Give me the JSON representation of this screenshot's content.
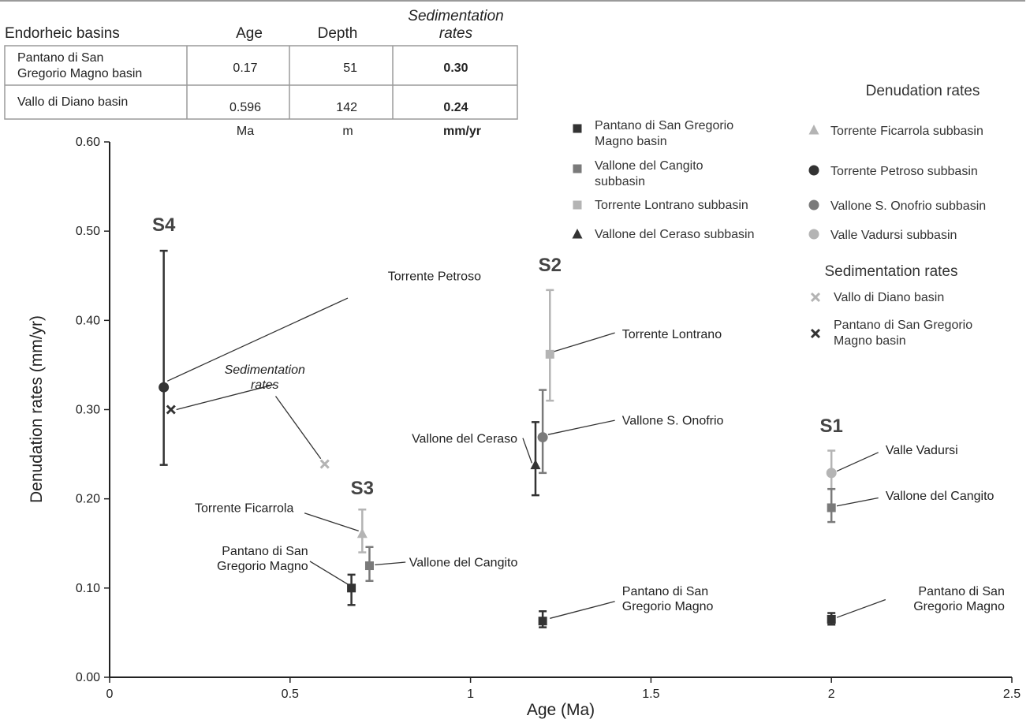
{
  "table": {
    "headers": [
      "Endorheic basins",
      "Age",
      "Depth",
      "Sedimentation",
      "rates"
    ],
    "rows": [
      {
        "name_lines": [
          "Pantano di San",
          "Gregorio Magno basin"
        ],
        "age": "0.17",
        "depth": "51",
        "rate": "0.30"
      },
      {
        "name_lines": [
          "Vallo di Diano basin"
        ],
        "age": "0.596",
        "depth": "142",
        "rate": "0.24"
      }
    ],
    "units": [
      "Ma",
      "m",
      "mm/yr"
    ]
  },
  "chart_data": {
    "type": "scatter",
    "xlabel": "Age (Ma)",
    "ylabel": "Denudation rates (mm/yr)",
    "xlim": [
      0,
      2.5
    ],
    "ylim": [
      0,
      0.6
    ],
    "x_ticks": [
      "0",
      "0.5",
      "1",
      "1.5",
      "2",
      "2.5"
    ],
    "y_ticks": [
      "0.00",
      "0.10",
      "0.20",
      "0.30",
      "0.40",
      "0.50",
      "0.60"
    ],
    "grid": false,
    "colors": {
      "dark": "#333333",
      "mid": "#7a7a7a",
      "light": "#b4b4b4"
    },
    "series": [
      {
        "x": 0.15,
        "y": 0.325,
        "err": [
          0.238,
          0.478
        ],
        "marker": "circle",
        "shade": "dark"
      },
      {
        "x": 0.17,
        "y": 0.3,
        "marker": "x",
        "shade": "dark"
      },
      {
        "x": 0.596,
        "y": 0.239,
        "marker": "x",
        "shade": "light"
      },
      {
        "x": 0.67,
        "y": 0.1,
        "err": [
          0.081,
          0.115
        ],
        "marker": "square",
        "shade": "dark"
      },
      {
        "x": 0.7,
        "y": 0.161,
        "err": [
          0.14,
          0.188
        ],
        "marker": "triangle",
        "shade": "light"
      },
      {
        "x": 0.72,
        "y": 0.125,
        "err": [
          0.108,
          0.146
        ],
        "marker": "square",
        "shade": "mid"
      },
      {
        "x": 1.18,
        "y": 0.238,
        "err": [
          0.204,
          0.286
        ],
        "marker": "triangle",
        "shade": "dark"
      },
      {
        "x": 1.2,
        "y": 0.269,
        "err": [
          0.229,
          0.322
        ],
        "marker": "circle",
        "shade": "mid"
      },
      {
        "x": 1.2,
        "y": 0.063,
        "err": [
          0.056,
          0.074
        ],
        "marker": "square",
        "shade": "dark"
      },
      {
        "x": 1.22,
        "y": 0.362,
        "err": [
          0.31,
          0.434
        ],
        "marker": "square",
        "shade": "light"
      },
      {
        "x": 2.0,
        "y": 0.229,
        "err": [
          0.211,
          0.254
        ],
        "marker": "circle",
        "shade": "light"
      },
      {
        "x": 2.0,
        "y": 0.19,
        "err": [
          0.174,
          0.211
        ],
        "marker": "square",
        "shade": "mid"
      },
      {
        "x": 2.0,
        "y": 0.065,
        "err": [
          0.059,
          0.072
        ],
        "marker": "square",
        "shade": "dark"
      }
    ],
    "group_labels": [
      {
        "text": "S4",
        "x": 0.15,
        "y": 0.5
      },
      {
        "text": "S2",
        "x": 1.22,
        "y": 0.455
      },
      {
        "text": "S3",
        "x": 0.7,
        "y": 0.205
      },
      {
        "text": "S1",
        "x": 2.0,
        "y": 0.275
      }
    ],
    "annotations": [
      {
        "lines": [
          "Torrente Petroso"
        ],
        "x": 0.9,
        "y": 0.445,
        "anchor": "middle",
        "px": 0.16,
        "py": 0.332,
        "lx": 0.66,
        "ly": 0.425
      },
      {
        "lines": [
          "Sedimentation",
          "rates"
        ],
        "x": 0.43,
        "y": 0.34,
        "anchor": "middle",
        "italic": true,
        "px": 0.185,
        "py": 0.3,
        "lx": 0.455,
        "ly": 0.328
      },
      {
        "lines": [],
        "px": 0.585,
        "py": 0.245,
        "lx": 0.46,
        "ly": 0.315
      },
      {
        "lines": [
          "Torrente Ficarrola"
        ],
        "x": 0.51,
        "y": 0.185,
        "anchor": "end",
        "px": 0.69,
        "py": 0.164,
        "lx": 0.54,
        "ly": 0.184
      },
      {
        "lines": [
          "Pantano di San",
          "Gregorio Magno"
        ],
        "x": 0.55,
        "y": 0.137,
        "anchor": "end",
        "px": 0.665,
        "py": 0.103,
        "lx": 0.555,
        "ly": 0.13
      },
      {
        "lines": [
          "Vallone del Cangito"
        ],
        "x": 0.83,
        "y": 0.124,
        "anchor": "start",
        "px": 0.735,
        "py": 0.126,
        "lx": 0.82,
        "ly": 0.129
      },
      {
        "lines": [
          "Torrente Lontrano"
        ],
        "x": 1.42,
        "y": 0.38,
        "anchor": "start",
        "px": 1.23,
        "py": 0.365,
        "lx": 1.4,
        "ly": 0.386
      },
      {
        "lines": [
          "Vallone S. Onofrio"
        ],
        "x": 1.42,
        "y": 0.283,
        "anchor": "start",
        "px": 1.215,
        "py": 0.272,
        "lx": 1.4,
        "ly": 0.288
      },
      {
        "lines": [
          "Vallone del Ceraso"
        ],
        "x": 1.13,
        "y": 0.263,
        "anchor": "end",
        "px": 1.17,
        "py": 0.24,
        "lx": 1.145,
        "ly": 0.268
      },
      {
        "lines": [
          "Pantano di San",
          "Gregorio Magno"
        ],
        "x": 1.42,
        "y": 0.092,
        "anchor": "start",
        "px": 1.22,
        "py": 0.066,
        "lx": 1.4,
        "ly": 0.085
      },
      {
        "lines": [
          "Valle Vadursi"
        ],
        "x": 2.15,
        "y": 0.25,
        "anchor": "start",
        "px": 2.015,
        "py": 0.231,
        "lx": 2.13,
        "ly": 0.252
      },
      {
        "lines": [
          "Vallone del Cangito"
        ],
        "x": 2.15,
        "y": 0.199,
        "anchor": "start",
        "px": 2.015,
        "py": 0.192,
        "lx": 2.13,
        "ly": 0.201
      },
      {
        "lines": [
          "Pantano di San",
          "Gregorio Magno"
        ],
        "x": 2.48,
        "y": 0.092,
        "anchor": "end",
        "px": 2.015,
        "py": 0.067,
        "lx": 2.15,
        "ly": 0.087
      }
    ],
    "legend": {
      "placement": "top-right",
      "title_denudation": "Denudation rates",
      "title_sedimentation": "Sedimentation rates",
      "left": [
        {
          "label_lines": [
            "Pantano di San Gregorio",
            "Magno basin"
          ],
          "marker": "square",
          "shade": "dark"
        },
        {
          "label_lines": [
            "Vallone del Cangito",
            "subbasin"
          ],
          "marker": "square",
          "shade": "mid"
        },
        {
          "label_lines": [
            "Torrente Lontrano subbasin"
          ],
          "marker": "square",
          "shade": "light"
        },
        {
          "label_lines": [
            "Vallone del Ceraso subbasin"
          ],
          "marker": "triangle",
          "shade": "dark"
        }
      ],
      "right": [
        {
          "label_lines": [
            "Torrente Ficarrola subbasin"
          ],
          "marker": "triangle",
          "shade": "light"
        },
        {
          "label_lines": [
            "Torrente Petroso subbasin"
          ],
          "marker": "circle",
          "shade": "dark"
        },
        {
          "label_lines": [
            "Vallone S. Onofrio subbasin"
          ],
          "marker": "circle",
          "shade": "mid"
        },
        {
          "label_lines": [
            "Valle Vadursi subbasin"
          ],
          "marker": "circle",
          "shade": "light"
        }
      ],
      "sedimentation": [
        {
          "label_lines": [
            "Vallo di Diano basin"
          ],
          "marker": "x",
          "shade": "light"
        },
        {
          "label_lines": [
            "Pantano di San Gregorio",
            "Magno basin"
          ],
          "marker": "x",
          "shade": "dark"
        }
      ]
    }
  }
}
